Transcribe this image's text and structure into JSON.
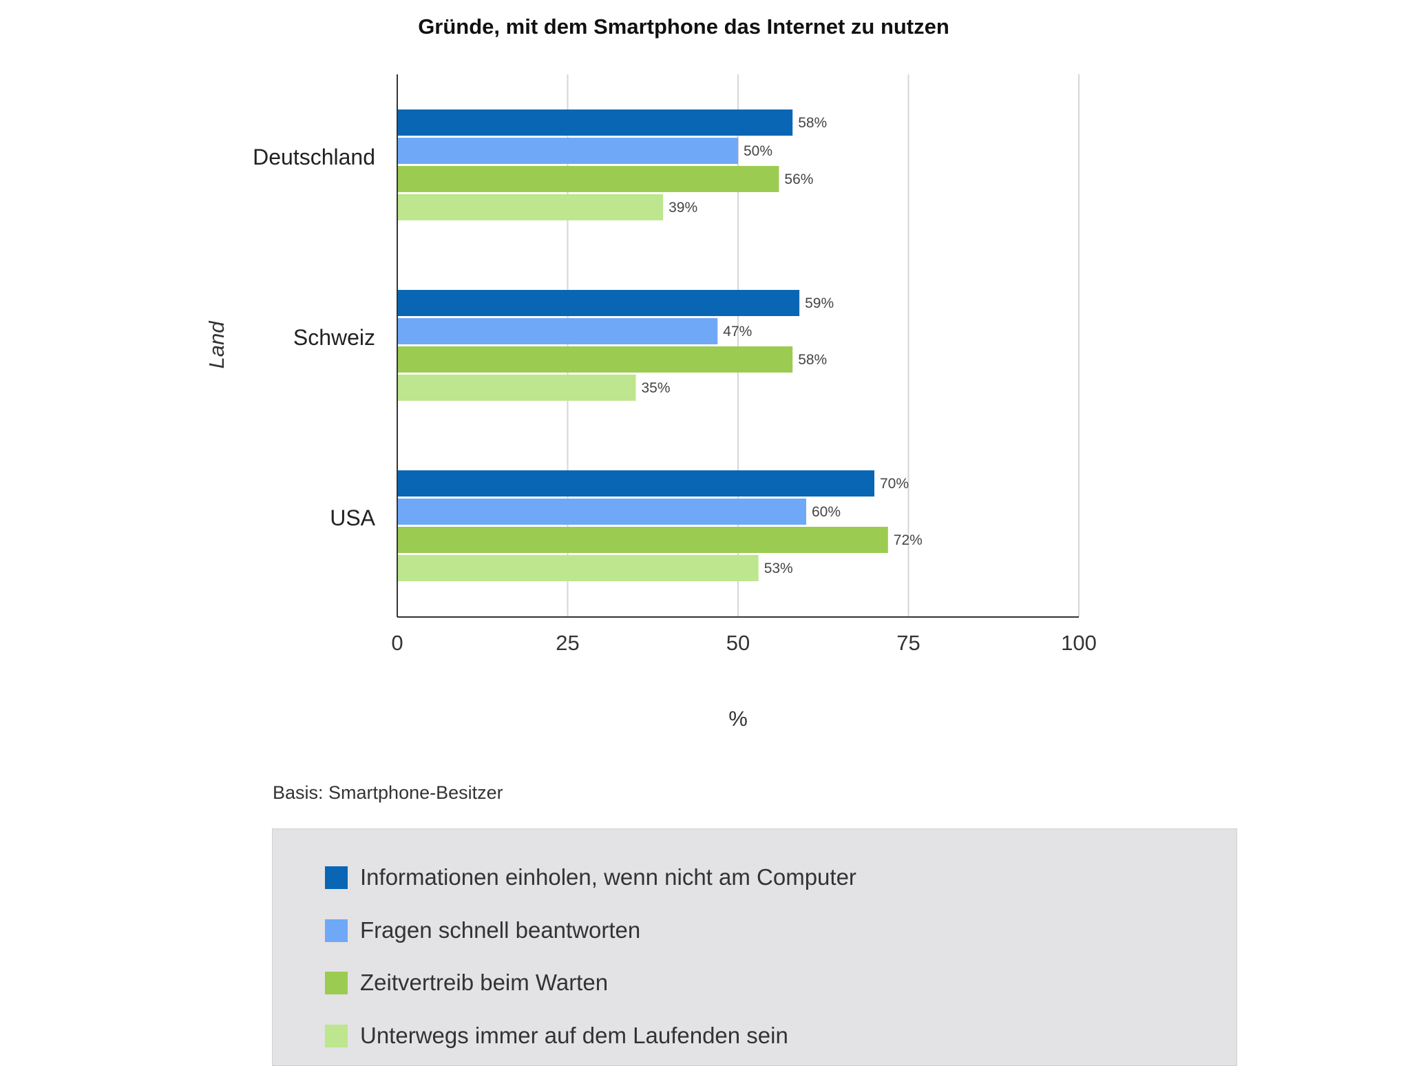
{
  "chart_data": {
    "type": "bar",
    "orientation": "horizontal",
    "title": "Gründe, mit dem Smartphone das Internet zu nutzen",
    "xlabel": "%",
    "ylabel": "Land",
    "xlim": [
      0,
      100
    ],
    "xticks": [
      "0",
      "25",
      "50",
      "75",
      "100"
    ],
    "grid": true,
    "categories": [
      "Deutschland",
      "Schweiz",
      "USA"
    ],
    "series": [
      {
        "name": "Informationen einholen, wenn nicht am Computer",
        "color": "#0866b4",
        "values": [
          58,
          59,
          70
        ],
        "labels": [
          "58%",
          "59%",
          "70%"
        ]
      },
      {
        "name": "Fragen schnell beantworten",
        "color": "#6fa8f7",
        "values": [
          50,
          47,
          60
        ],
        "labels": [
          "50%",
          "47%",
          "60%"
        ]
      },
      {
        "name": "Zeitvertreib beim Warten",
        "color": "#9ccb51",
        "values": [
          56,
          58,
          72
        ],
        "labels": [
          "56%",
          "58%",
          "72%"
        ]
      },
      {
        "name": "Unterwegs immer auf dem Laufenden sein",
        "color": "#bde68e",
        "values": [
          39,
          35,
          53
        ],
        "labels": [
          "39%",
          "35%",
          "53%"
        ]
      }
    ],
    "legend_position": "bottom"
  },
  "footnote": "Basis: Smartphone-Besitzer"
}
